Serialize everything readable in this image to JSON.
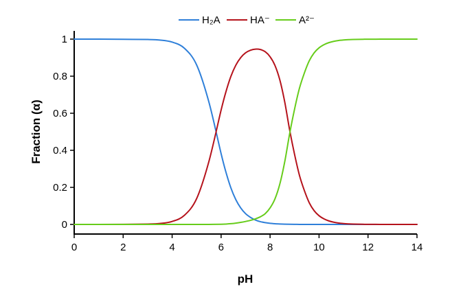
{
  "chart_data": {
    "type": "line",
    "xlabel": "pH",
    "ylabel": "Fraction (α)",
    "xlim": [
      0,
      14
    ],
    "ylim": [
      0,
      1
    ],
    "x_ticks": [
      "0",
      "2",
      "4",
      "6",
      "8",
      "10",
      "12",
      "14"
    ],
    "y_ticks": [
      "0",
      "0.2",
      "0.4",
      "0.6",
      "0.8",
      "1"
    ],
    "grid": false,
    "legend_position": "top-center",
    "x": [
      0,
      1,
      2,
      3,
      3.5,
      4,
      4.5,
      5,
      5.5,
      6,
      6.2,
      6.4,
      6.6,
      6.8,
      7,
      7.2,
      7.4,
      7.6,
      7.8,
      8,
      8.2,
      8.4,
      8.6,
      8.8,
      9,
      9.2,
      9.4,
      9.6,
      9.8,
      10,
      10.2,
      10.4,
      10.6,
      10.8,
      11,
      11.2,
      11.4,
      11.6,
      11.8,
      12,
      12.5,
      13,
      13.5,
      14
    ],
    "series": [
      {
        "name": "H₂A",
        "color": "#2e7fd9",
        "values": [
          1.0,
          1.0,
          0.999,
          0.998,
          0.995,
          0.984,
          0.951,
          0.861,
          0.661,
          0.382,
          0.281,
          0.197,
          0.134,
          0.089,
          0.058,
          0.038,
          0.024,
          0.015,
          0.0097,
          0.0059,
          0.0036,
          0.0022,
          0.0013,
          0.0008,
          0.0004,
          0.0002,
          0.0001,
          0.0001,
          0,
          0,
          0,
          0,
          0,
          0,
          0,
          0,
          0,
          0,
          0,
          0,
          0,
          0,
          0,
          0
        ]
      },
      {
        "name": "HA⁻",
        "color": "#b5121b",
        "values": [
          0.0,
          0.0001,
          0.0005,
          0.002,
          0.005,
          0.016,
          0.049,
          0.139,
          0.339,
          0.617,
          0.717,
          0.799,
          0.859,
          0.9,
          0.926,
          0.94,
          0.946,
          0.944,
          0.932,
          0.905,
          0.858,
          0.779,
          0.66,
          0.509,
          0.378,
          0.265,
          0.183,
          0.117,
          0.074,
          0.047,
          0.03,
          0.019,
          0.012,
          0.0075,
          0.0048,
          0.003,
          0.0019,
          0.0012,
          0.0008,
          0.0005,
          0.0002,
          0.0001,
          0,
          0
        ]
      },
      {
        "name": "A²⁻",
        "color": "#66cc1a",
        "values": [
          0,
          0,
          0,
          0,
          0,
          0,
          0,
          0,
          0,
          0.001,
          0.002,
          0.004,
          0.007,
          0.011,
          0.016,
          0.022,
          0.03,
          0.041,
          0.058,
          0.089,
          0.138,
          0.219,
          0.339,
          0.49,
          0.622,
          0.735,
          0.817,
          0.883,
          0.926,
          0.953,
          0.97,
          0.981,
          0.988,
          0.9925,
          0.9952,
          0.997,
          0.9981,
          0.9988,
          0.9992,
          0.9995,
          0.9998,
          0.9999,
          1.0,
          1.0
        ]
      }
    ]
  }
}
